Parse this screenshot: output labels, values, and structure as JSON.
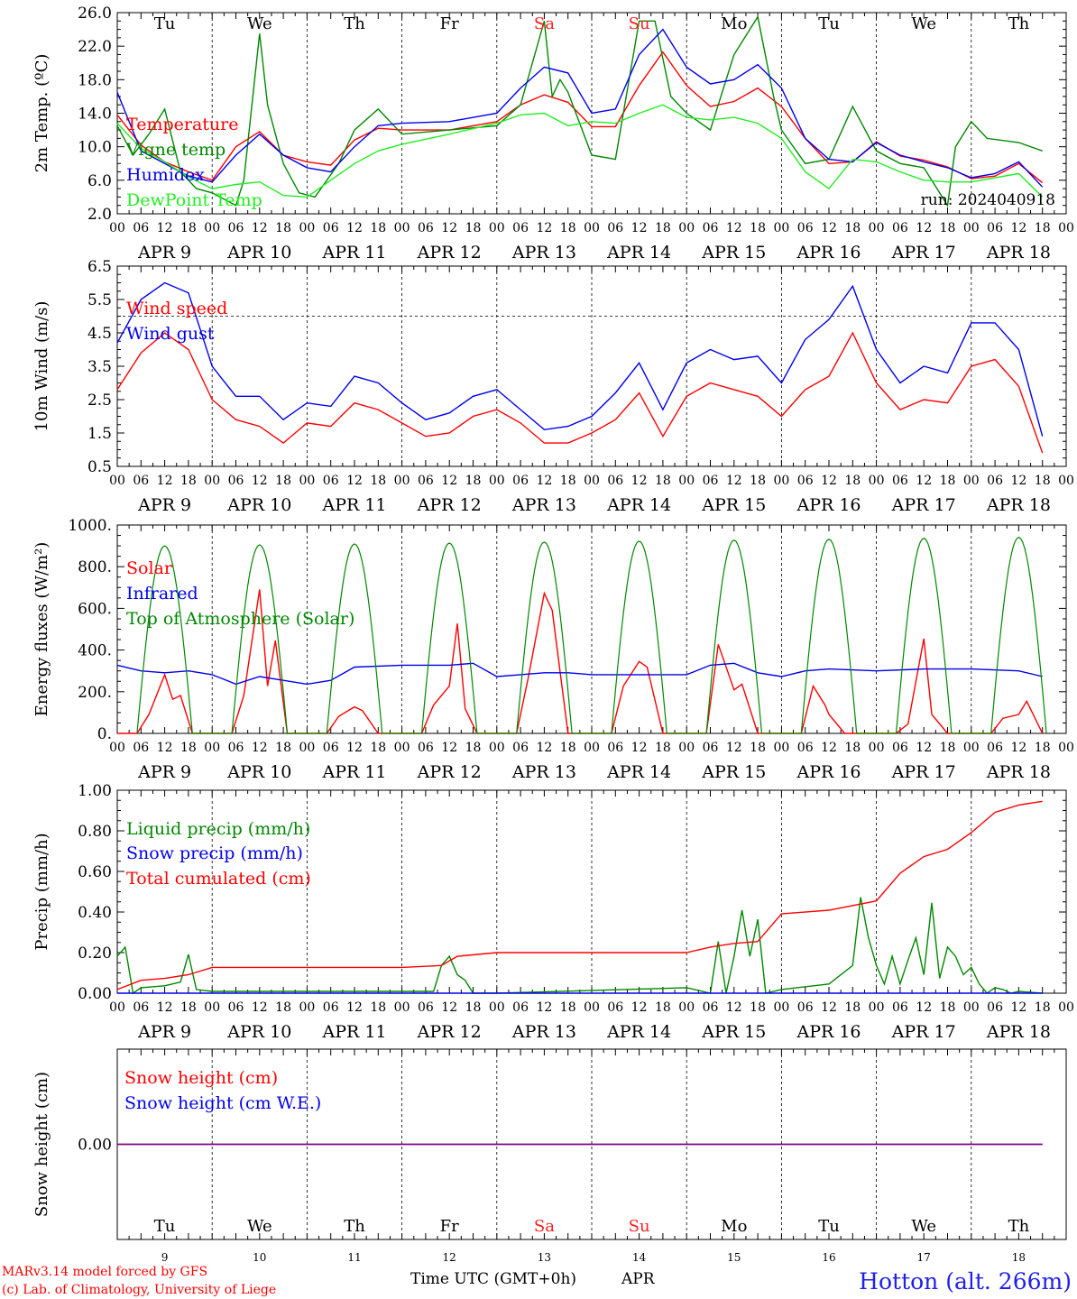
{
  "footer": {
    "model": "MARv3.14 model forced by GFS",
    "copyright": "(c) Lab. of Climatology, University of Liege",
    "xlabel": "Time UTC (GMT+0h)",
    "month": "APR",
    "station": "Hotton (alt. 266m)"
  },
  "run_label": "run: 2024040918",
  "days": {
    "weekday": [
      "Tu",
      "We",
      "Th",
      "Fr",
      "Sa",
      "Su",
      "Mo",
      "Tu",
      "We",
      "Th"
    ],
    "weekend_color": "#ff2020",
    "weekend_index": [
      4,
      5
    ],
    "date_label": [
      "APR  9",
      "APR 10",
      "APR 11",
      "APR 12",
      "APR 13",
      "APR 14",
      "APR 15",
      "APR 16",
      "APR 17",
      "APR 18"
    ],
    "day_num": [
      "9",
      "10",
      "11",
      "12",
      "13",
      "14",
      "15",
      "16",
      "17",
      "18"
    ],
    "hour_ticks": [
      "00",
      "06",
      "12",
      "18"
    ]
  },
  "colors": {
    "red": "#ff0000",
    "darkgreen": "#008800",
    "blue": "#0000ee",
    "lightgreen": "#22ee22",
    "purple": "#800080",
    "grid": "#000000"
  },
  "chart_data": [
    {
      "type": "line",
      "ylabel": "2m Temp. (ºC)",
      "ylim": [
        2.0,
        26.0
      ],
      "yticks": [
        "2.0",
        "6.0",
        "10.0",
        "14.0",
        "18.0",
        "22.0",
        "26.0"
      ],
      "x_unit": "hours since Apr 9 00 UTC",
      "series": [
        {
          "name": "Temperature",
          "color": "#ff0000",
          "x": [
            0,
            6,
            12,
            18,
            24,
            30,
            36,
            42,
            48,
            54,
            60,
            66,
            72,
            84,
            96,
            102,
            108,
            114,
            120,
            126,
            132,
            138,
            144,
            150,
            156,
            162,
            168,
            174,
            180,
            186,
            192,
            198,
            204,
            210,
            216,
            222,
            228,
            234
          ],
          "y": [
            13.8,
            10.2,
            8.2,
            7.0,
            6.0,
            10.0,
            11.8,
            9.0,
            8.2,
            7.8,
            10.8,
            12.2,
            12.0,
            12.0,
            13.0,
            15.0,
            16.2,
            15.3,
            12.4,
            12.4,
            17.3,
            21.3,
            17.3,
            14.8,
            15.4,
            17.0,
            14.8,
            11.0,
            8.0,
            8.2,
            10.6,
            8.9,
            8.4,
            7.6,
            6.2,
            6.5,
            8.0,
            5.7
          ]
        },
        {
          "name": "Vigne temp",
          "color": "#008800",
          "x": [
            0,
            4,
            8,
            12,
            16,
            20,
            24,
            30,
            32,
            36,
            38,
            42,
            46,
            50,
            56,
            60,
            66,
            72,
            84,
            96,
            102,
            108,
            110,
            112,
            114,
            120,
            126,
            132,
            136,
            140,
            144,
            150,
            156,
            162,
            166,
            168,
            174,
            180,
            186,
            192,
            198,
            204,
            210,
            212,
            216,
            220,
            228,
            234
          ],
          "y": [
            12.5,
            9.0,
            11.5,
            14.5,
            7.0,
            5.0,
            4.5,
            3.0,
            6.0,
            23.5,
            15.0,
            8.0,
            4.5,
            4.0,
            8.0,
            12.0,
            14.5,
            11.5,
            12.0,
            12.5,
            15.0,
            25.0,
            16.0,
            18.0,
            16.5,
            9.0,
            8.5,
            25.0,
            25.0,
            16.0,
            14.0,
            12.0,
            21.0,
            25.5,
            16.0,
            12.0,
            8.0,
            8.5,
            14.8,
            9.5,
            8.0,
            7.5,
            3.0,
            10.0,
            13.0,
            11.0,
            10.5,
            9.5
          ]
        },
        {
          "name": "Humidex",
          "color": "#0000ee",
          "x": [
            0,
            6,
            12,
            18,
            24,
            30,
            36,
            42,
            48,
            54,
            60,
            66,
            72,
            84,
            96,
            102,
            108,
            114,
            120,
            126,
            132,
            138,
            144,
            150,
            156,
            162,
            168,
            174,
            180,
            186,
            192,
            198,
            204,
            210,
            216,
            222,
            228,
            234
          ],
          "y": [
            16.5,
            9.5,
            8.0,
            6.5,
            5.8,
            9.0,
            11.5,
            9.0,
            7.5,
            7.0,
            10.0,
            12.5,
            12.8,
            13.0,
            14.0,
            17.0,
            19.5,
            18.8,
            14.0,
            14.5,
            21.0,
            24.0,
            19.5,
            17.5,
            18.0,
            19.8,
            17.0,
            11.0,
            8.5,
            8.2,
            10.5,
            9.0,
            8.2,
            7.5,
            6.3,
            6.8,
            8.2,
            5.2
          ]
        },
        {
          "name": "DewPoint Temp",
          "color": "#22ee22",
          "x": [
            0,
            6,
            12,
            18,
            24,
            30,
            36,
            42,
            48,
            54,
            60,
            66,
            72,
            84,
            96,
            102,
            108,
            114,
            120,
            126,
            132,
            138,
            144,
            150,
            156,
            162,
            168,
            174,
            180,
            186,
            192,
            198,
            204,
            210,
            216,
            222,
            228,
            234
          ],
          "y": [
            12.8,
            9.8,
            8.2,
            6.4,
            5.0,
            5.5,
            5.8,
            4.2,
            4.0,
            6.0,
            8.0,
            9.5,
            10.3,
            11.5,
            12.8,
            13.8,
            14.0,
            12.5,
            13.0,
            12.8,
            14.0,
            15.0,
            13.5,
            13.2,
            13.5,
            12.8,
            11.0,
            7.0,
            5.0,
            8.5,
            8.2,
            7.0,
            6.0,
            5.8,
            5.8,
            6.3,
            6.8,
            4.0
          ]
        }
      ]
    },
    {
      "type": "line",
      "ylabel": "10m Wind (m/s)",
      "ylim": [
        0.5,
        6.5
      ],
      "yticks": [
        "0.5",
        "1.5",
        "2.5",
        "3.5",
        "4.5",
        "5.5",
        "6.5"
      ],
      "reference_line": 5.0,
      "series": [
        {
          "name": "Wind speed",
          "color": "#ff0000",
          "x": [
            0,
            6,
            12,
            18,
            24,
            30,
            36,
            42,
            48,
            54,
            60,
            66,
            72,
            78,
            84,
            90,
            96,
            102,
            108,
            114,
            120,
            126,
            132,
            138,
            144,
            150,
            156,
            162,
            168,
            174,
            180,
            186,
            192,
            198,
            204,
            210,
            216,
            222,
            228,
            234
          ],
          "y": [
            2.8,
            3.9,
            4.5,
            4.0,
            2.5,
            1.9,
            1.7,
            1.2,
            1.8,
            1.7,
            2.4,
            2.2,
            1.8,
            1.4,
            1.5,
            2.0,
            2.2,
            1.8,
            1.2,
            1.2,
            1.5,
            1.9,
            2.7,
            1.4,
            2.6,
            3.0,
            2.8,
            2.6,
            2.0,
            2.8,
            3.2,
            4.5,
            3.0,
            2.2,
            2.5,
            2.4,
            3.5,
            3.7,
            2.9,
            0.9
          ]
        },
        {
          "name": "Wind gust",
          "color": "#0000ee",
          "x": [
            0,
            6,
            12,
            18,
            24,
            30,
            36,
            42,
            48,
            54,
            60,
            66,
            72,
            78,
            84,
            90,
            96,
            102,
            108,
            114,
            120,
            126,
            132,
            138,
            144,
            150,
            156,
            162,
            168,
            174,
            180,
            186,
            192,
            198,
            204,
            210,
            216,
            222,
            228,
            234
          ],
          "y": [
            4.2,
            5.5,
            6.0,
            5.7,
            3.5,
            2.6,
            2.6,
            1.9,
            2.4,
            2.3,
            3.2,
            3.0,
            2.4,
            1.9,
            2.1,
            2.6,
            2.8,
            2.2,
            1.6,
            1.7,
            2.0,
            2.7,
            3.6,
            2.2,
            3.6,
            4.0,
            3.7,
            3.8,
            3.0,
            4.3,
            4.9,
            5.9,
            4.0,
            3.0,
            3.5,
            3.3,
            4.8,
            4.8,
            4.0,
            1.4
          ]
        }
      ]
    },
    {
      "type": "line",
      "ylabel": "Energy fluxes (W/m²)",
      "ylim": [
        0,
        1100
      ],
      "yticks": [
        "0.",
        "200.",
        "400.",
        "600.",
        "800.",
        "1000."
      ],
      "series": [
        {
          "name": "Solar",
          "color": "#ff0000",
          "x": [
            0,
            5,
            8,
            12,
            14,
            16,
            19,
            24,
            29,
            32,
            36,
            38,
            40,
            43,
            48,
            53,
            56,
            60,
            62,
            66,
            72,
            77,
            80,
            84,
            86,
            88,
            91,
            96,
            101,
            104,
            108,
            110,
            114,
            120,
            125,
            128,
            132,
            134,
            138,
            144,
            149,
            152,
            156,
            158,
            162,
            168,
            173,
            176,
            179,
            180,
            184,
            186,
            192,
            197,
            200,
            204,
            206,
            210,
            216,
            221,
            224,
            228,
            230,
            234
          ],
          "y": [
            0,
            0,
            100,
            310,
            180,
            200,
            0,
            0,
            0,
            200,
            760,
            250,
            490,
            0,
            0,
            0,
            90,
            140,
            120,
            0,
            0,
            0,
            150,
            250,
            580,
            130,
            0,
            0,
            0,
            300,
            740,
            650,
            0,
            0,
            0,
            250,
            380,
            350,
            0,
            0,
            0,
            470,
            230,
            260,
            0,
            0,
            0,
            250,
            150,
            100,
            0,
            0,
            0,
            0,
            50,
            500,
            100,
            0,
            0,
            0,
            80,
            100,
            170,
            0
          ]
        },
        {
          "name": "Infrared",
          "color": "#0000ee",
          "x": [
            0,
            6,
            12,
            18,
            24,
            30,
            36,
            42,
            48,
            54,
            60,
            72,
            84,
            90,
            96,
            102,
            108,
            114,
            120,
            132,
            144,
            150,
            156,
            162,
            168,
            174,
            180,
            192,
            204,
            216,
            228,
            234
          ],
          "y": [
            360,
            330,
            320,
            330,
            310,
            260,
            300,
            280,
            260,
            280,
            350,
            360,
            360,
            370,
            300,
            310,
            320,
            320,
            310,
            310,
            310,
            360,
            370,
            320,
            300,
            330,
            340,
            330,
            340,
            340,
            330,
            300
          ]
        },
        {
          "name": "Top of Atmosphere (Solar)",
          "color": "#008800",
          "x": [
            0,
            6,
            12,
            18,
            24
          ],
          "y": [
            0,
            990,
            990,
            990,
            0
          ]
        }
      ]
    },
    {
      "type": "line",
      "ylabel": "Precip (mm/h)",
      "ylim": [
        0,
        1.1
      ],
      "yticks": [
        "0.00",
        "0.20",
        "0.40",
        "0.60",
        "0.80",
        "1.00"
      ],
      "series": [
        {
          "name": "Liquid precip (mm/h)",
          "color": "#008800",
          "x": [
            0,
            2,
            4,
            6,
            12,
            16,
            18,
            20,
            24,
            80,
            82,
            84,
            86,
            88,
            90,
            96,
            144,
            150,
            152,
            154,
            156,
            158,
            160,
            162,
            164,
            168,
            180,
            186,
            188,
            190,
            192,
            194,
            196,
            198,
            200,
            202,
            204,
            206,
            208,
            210,
            212,
            214,
            216,
            218,
            220,
            222,
            224,
            226,
            228,
            234
          ],
          "y": [
            0.2,
            0.25,
            0,
            0.03,
            0.04,
            0.06,
            0.21,
            0.02,
            0.01,
            0.01,
            0.15,
            0.2,
            0.1,
            0.07,
            0.0,
            0.0,
            0.03,
            0.0,
            0.28,
            0.0,
            0.2,
            0.45,
            0.2,
            0.4,
            0.0,
            0.02,
            0.05,
            0.15,
            0.52,
            0.3,
            0.15,
            0.05,
            0.2,
            0.05,
            0.18,
            0.3,
            0.1,
            0.49,
            0.08,
            0.25,
            0.2,
            0.1,
            0.14,
            0.05,
            0.0,
            0.03,
            0.02,
            0.0,
            0.01,
            0.0
          ]
        },
        {
          "name": "Snow precip (mm/h)",
          "color": "#0000ee",
          "x": [
            0,
            234
          ],
          "y": [
            0,
            0
          ]
        },
        {
          "name": "Total cumulated (cm)",
          "color": "#ff0000",
          "x": [
            0,
            6,
            12,
            18,
            24,
            48,
            72,
            82,
            86,
            96,
            120,
            144,
            150,
            156,
            162,
            168,
            180,
            192,
            198,
            204,
            210,
            216,
            222,
            228,
            234
          ],
          "y": [
            0.02,
            0.07,
            0.08,
            0.1,
            0.14,
            0.14,
            0.14,
            0.15,
            0.2,
            0.22,
            0.22,
            0.22,
            0.25,
            0.27,
            0.28,
            0.43,
            0.45,
            0.5,
            0.65,
            0.74,
            0.78,
            0.87,
            0.98,
            1.02,
            1.04
          ]
        }
      ]
    },
    {
      "type": "line",
      "ylabel": "Snow height (cm)",
      "ylim": [
        -1,
        1
      ],
      "yticks": [
        "0.00"
      ],
      "series": [
        {
          "name": "Snow height (cm)",
          "color": "#ff0000",
          "x": [
            0,
            234
          ],
          "y": [
            0,
            0
          ]
        },
        {
          "name": "Snow height (cm W.E.)",
          "color": "#0000ee",
          "x": [
            0,
            234
          ],
          "y": [
            0,
            0
          ]
        }
      ]
    }
  ]
}
